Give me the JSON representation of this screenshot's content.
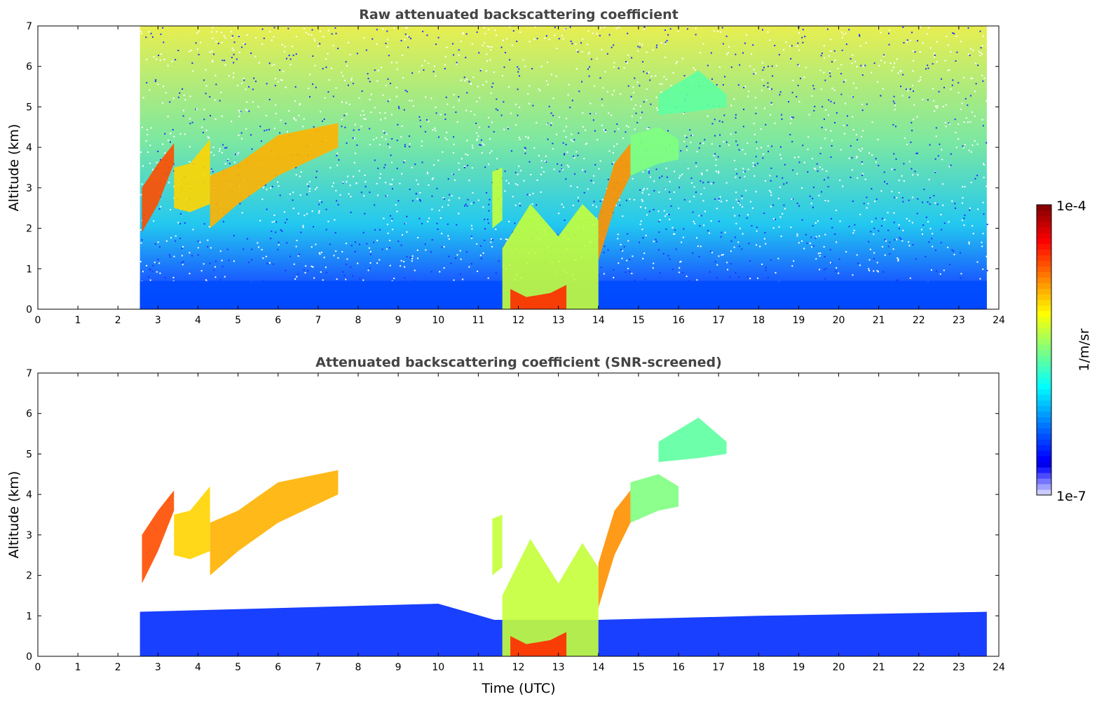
{
  "chart_data": [
    {
      "type": "heatmap",
      "title": "Raw attenuated backscattering coefficient",
      "xlabel": "",
      "ylabel": "Altitude (km)",
      "xlim": [
        0,
        24
      ],
      "ylim": [
        0,
        7
      ],
      "xticks": [
        "0",
        "1",
        "2",
        "3",
        "4",
        "5",
        "6",
        "7",
        "8",
        "9",
        "10",
        "11",
        "12",
        "13",
        "14",
        "15",
        "16",
        "17",
        "18",
        "19",
        "20",
        "21",
        "22",
        "23",
        "24"
      ],
      "yticks": [
        "0",
        "1",
        "2",
        "3",
        "4",
        "5",
        "6",
        "7"
      ],
      "data_time_range": [
        2.55,
        23.7
      ],
      "background_noise": true,
      "features": [
        {
          "name": "boundary-layer",
          "t": [
            2.55,
            23.7
          ],
          "base": [
            0,
            0
          ],
          "top": [
            0.7,
            0.7
          ],
          "log_beta": -6.4
        },
        {
          "name": "cloud-a",
          "t": [
            2.6,
            3.0,
            3.4
          ],
          "base": [
            1.9,
            2.6,
            3.6
          ],
          "top": [
            3.0,
            3.6,
            4.1
          ],
          "log_beta": -4.6
        },
        {
          "name": "cloud-b",
          "t": [
            3.4,
            3.8,
            4.3
          ],
          "base": [
            2.5,
            2.4,
            2.6
          ],
          "top": [
            3.5,
            3.6,
            4.2
          ],
          "log_beta": -5.0
        },
        {
          "name": "cloud-c",
          "t": [
            4.3,
            5.0,
            6.0,
            7.5
          ],
          "base": [
            2.0,
            2.6,
            3.3,
            4.0
          ],
          "top": [
            3.3,
            3.6,
            4.3,
            4.6
          ],
          "log_beta": -4.9
        },
        {
          "name": "cloud-d",
          "t": [
            11.35,
            11.6
          ],
          "base": [
            2.0,
            2.2
          ],
          "top": [
            3.4,
            3.5
          ],
          "log_beta": -5.3
        },
        {
          "name": "cloud-e",
          "t": [
            11.6,
            12.3,
            13.0,
            13.6,
            14.0
          ],
          "base": [
            0,
            0,
            0,
            0,
            0
          ],
          "top": [
            1.5,
            2.6,
            1.8,
            2.6,
            2.2
          ],
          "log_beta": -5.3
        },
        {
          "name": "cloud-e-core",
          "t": [
            11.8,
            12.2,
            12.8,
            13.2
          ],
          "base": [
            0,
            0,
            0,
            0
          ],
          "top": [
            0.5,
            0.3,
            0.4,
            0.6
          ],
          "log_beta": -4.5
        },
        {
          "name": "cloud-f",
          "t": [
            14.0,
            14.4,
            14.8
          ],
          "base": [
            1.2,
            2.5,
            3.3
          ],
          "top": [
            2.3,
            3.6,
            4.1
          ],
          "log_beta": -4.8
        },
        {
          "name": "cloud-g",
          "t": [
            14.8,
            15.5,
            16.0
          ],
          "base": [
            3.3,
            3.6,
            3.7
          ],
          "top": [
            4.3,
            4.5,
            4.2
          ],
          "log_beta": -5.5
        },
        {
          "name": "cloud-h",
          "t": [
            15.5,
            16.5,
            17.2
          ],
          "base": [
            4.8,
            4.9,
            5.0
          ],
          "top": [
            5.3,
            5.9,
            5.3
          ],
          "log_beta": -5.6
        }
      ]
    },
    {
      "type": "heatmap",
      "title": "Attenuated backscattering coefficient (SNR-screened)",
      "xlabel": "Time (UTC)",
      "ylabel": "Altitude (km)",
      "xlim": [
        0,
        24
      ],
      "ylim": [
        0,
        7
      ],
      "xticks": [
        "0",
        "1",
        "2",
        "3",
        "4",
        "5",
        "6",
        "7",
        "8",
        "9",
        "10",
        "11",
        "12",
        "13",
        "14",
        "15",
        "16",
        "17",
        "18",
        "19",
        "20",
        "21",
        "22",
        "23",
        "24"
      ],
      "yticks": [
        "0",
        "1",
        "2",
        "3",
        "4",
        "5",
        "6",
        "7"
      ],
      "data_time_range": [
        2.55,
        23.7
      ],
      "background_noise": false,
      "features": [
        {
          "name": "aerosol-layer",
          "t": [
            2.55,
            10,
            11.4,
            14,
            18,
            23.7
          ],
          "base": [
            0,
            0,
            0,
            0,
            0,
            0
          ],
          "top": [
            1.1,
            1.3,
            0.9,
            0.9,
            1.0,
            1.1
          ],
          "log_beta": -6.5
        },
        {
          "name": "cloud-a",
          "t": [
            2.6,
            3.0,
            3.4
          ],
          "base": [
            1.8,
            2.6,
            3.6
          ],
          "top": [
            3.0,
            3.6,
            4.1
          ],
          "log_beta": -4.6
        },
        {
          "name": "cloud-b",
          "t": [
            3.4,
            3.8,
            4.3
          ],
          "base": [
            2.5,
            2.4,
            2.6
          ],
          "top": [
            3.5,
            3.6,
            4.2
          ],
          "log_beta": -5.0
        },
        {
          "name": "cloud-c",
          "t": [
            4.3,
            5.0,
            6.0,
            7.5
          ],
          "base": [
            2.0,
            2.6,
            3.3,
            4.0
          ],
          "top": [
            3.3,
            3.6,
            4.3,
            4.6
          ],
          "log_beta": -4.9
        },
        {
          "name": "cloud-d",
          "t": [
            11.35,
            11.6
          ],
          "base": [
            2.0,
            2.2
          ],
          "top": [
            3.4,
            3.5
          ],
          "log_beta": -5.3
        },
        {
          "name": "cloud-e",
          "t": [
            11.6,
            12.3,
            13.0,
            13.6,
            14.0
          ],
          "base": [
            0,
            0,
            0,
            0,
            0
          ],
          "top": [
            1.5,
            2.9,
            1.8,
            2.8,
            2.2
          ],
          "log_beta": -5.3
        },
        {
          "name": "cloud-e-core",
          "t": [
            11.8,
            12.2,
            12.8,
            13.2
          ],
          "base": [
            0,
            0,
            0,
            0
          ],
          "top": [
            0.5,
            0.3,
            0.4,
            0.6
          ],
          "log_beta": -4.5
        },
        {
          "name": "cloud-f",
          "t": [
            14.0,
            14.4,
            14.8
          ],
          "base": [
            1.2,
            2.5,
            3.3
          ],
          "top": [
            2.3,
            3.6,
            4.1
          ],
          "log_beta": -4.8
        },
        {
          "name": "cloud-g",
          "t": [
            14.8,
            15.5,
            16.0
          ],
          "base": [
            3.3,
            3.6,
            3.7
          ],
          "top": [
            4.3,
            4.5,
            4.2
          ],
          "log_beta": -5.5
        },
        {
          "name": "cloud-h",
          "t": [
            15.5,
            16.5,
            17.2
          ],
          "base": [
            4.8,
            4.9,
            5.0
          ],
          "top": [
            5.3,
            5.9,
            5.3
          ],
          "log_beta": -5.6
        }
      ]
    }
  ],
  "colorbar": {
    "label": "1/m/sr",
    "max_label": "1e-4",
    "min_label": "1e-7",
    "log_range": [
      -7,
      -4
    ],
    "colormap": "jet"
  }
}
